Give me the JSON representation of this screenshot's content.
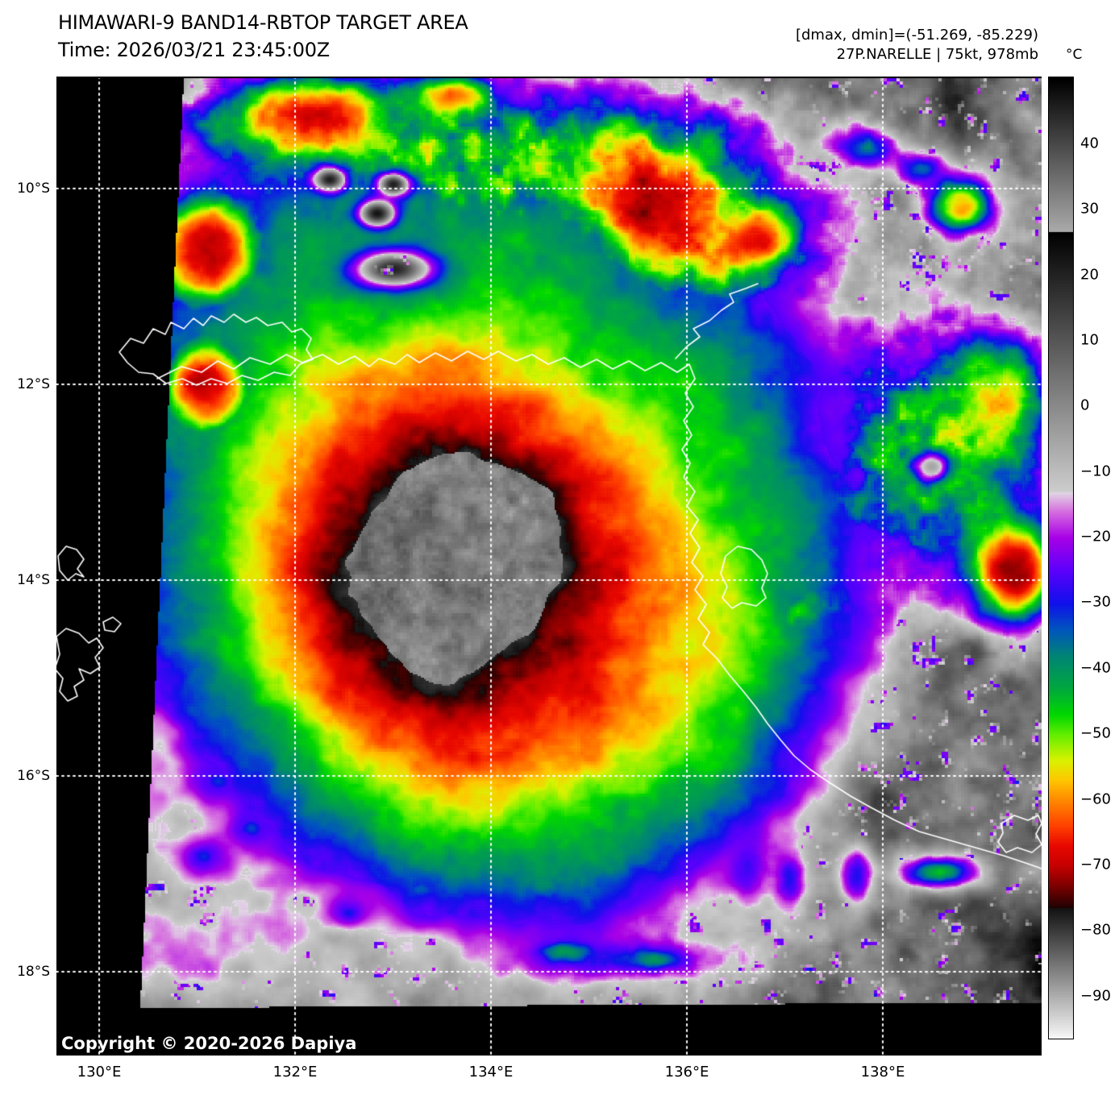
{
  "header": {
    "title": "HIMAWARI-9 BAND14-RBTOP TARGET AREA",
    "time": "Time: 2026/03/21 23:45:00Z"
  },
  "info": {
    "dmax_dmin": "[dmax, dmin]=(-51.269, -85.229)",
    "storm": "27P.NARELLE | 75kt, 978mb"
  },
  "colorbar": {
    "unit": "°C",
    "ticks": [
      "40",
      "30",
      "20",
      "10",
      "0",
      "−10",
      "−20",
      "−30",
      "−40",
      "−50",
      "−60",
      "−70",
      "−80",
      "−90"
    ],
    "top_value": 50,
    "bottom_value": -97,
    "key_colors": {
      "warm_gray_top": "#000000",
      "mid_gray": "#808080",
      "white_break": "#e0e0e0",
      "magenta": "#a800e6",
      "blue": "#1010eb",
      "green": "#00d700",
      "yellow": "#daf200",
      "orange": "#ff8a00",
      "red": "#c60000",
      "cold_dark": "#1e0202",
      "cold_white": "#ffffff"
    }
  },
  "axes": {
    "lat": [
      "10°S",
      "12°S",
      "14°S",
      "16°S",
      "18°S"
    ],
    "lon": [
      "130°E",
      "132°E",
      "134°E",
      "136°E",
      "138°E"
    ]
  },
  "footer": {
    "copyright": "Copyright © 2020-2026 Dapiya"
  }
}
